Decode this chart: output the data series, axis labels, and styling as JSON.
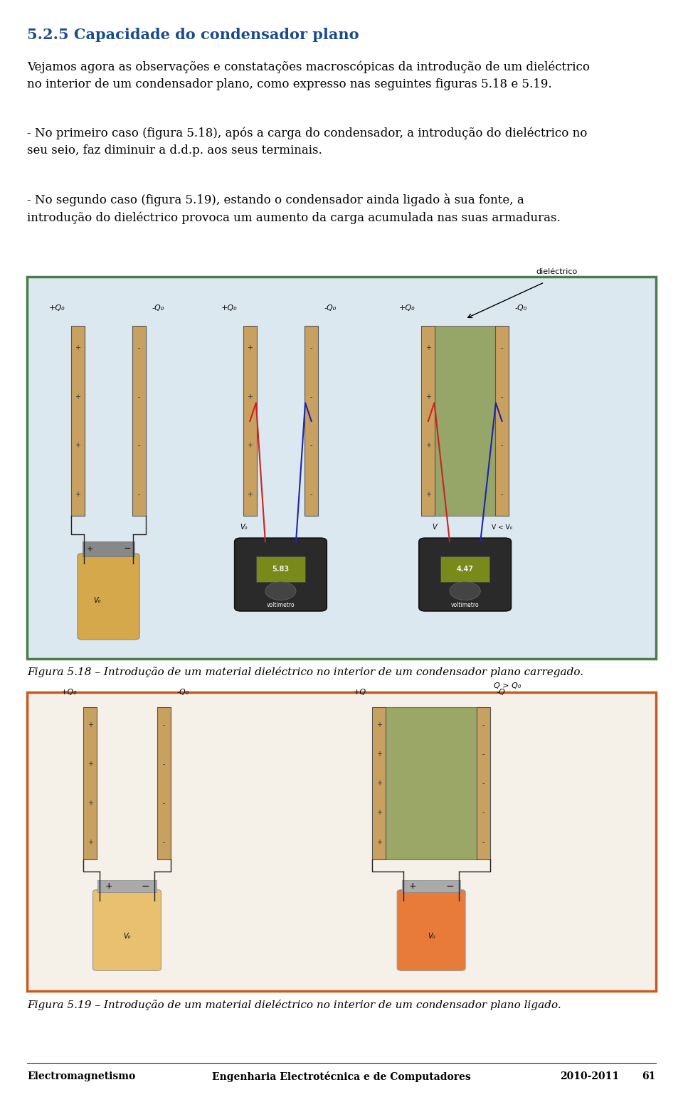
{
  "title": "5.2.5 Capacidade do condensador plano",
  "title_color": "#1a4b8c",
  "title_fontsize": 15,
  "body_text_1": "Vejamos agora as observações e constatações macroscópicas da introdução de um dieléctrico\nno interior de um condensador plano, como expresso nas seguintes figuras 5.18 e 5.19.",
  "body_text_2": "- No primeiro caso (figura 5.18), após a carga do condensador, a introdução do dieléctrico no\nseu seio, faz diminuir a d.d.p. aos seus terminais.",
  "body_text_3": "- No segundo caso (figura 5.19), estando o condensador ainda ligado à sua fonte, a\nintrodução do dieléctrico provoca um aumento da carga acumulada nas suas armaduras.",
  "fig18_caption": "Figura 5.18 – Introdução de um material dieléctrico no interior de um condensador plano carregado.",
  "fig19_caption": "Figura 5.19 – Introdução de um material dieléctrico no interior de um condensador plano ligado.",
  "footer_left": "Electromagnetismo",
  "footer_center": "Engenharia Electrotécnica e de Computadores",
  "footer_right": "2010-2011",
  "footer_page": "61",
  "background_color": "#ffffff",
  "text_color": "#000000",
  "body_fontsize": 12,
  "caption_fontsize": 11,
  "footer_fontsize": 10,
  "fig18_border_color": "#4a7c4e",
  "fig19_border_color": "#c85a1e",
  "fig18_bg": "#dce8f0",
  "fig19_bg": "#f5f0e8",
  "plate_color": "#c8a060",
  "dielectric_color": "#8a9a50",
  "voltmeter_color": "#3a3a3a",
  "lcd_color": "#8a9a2a"
}
